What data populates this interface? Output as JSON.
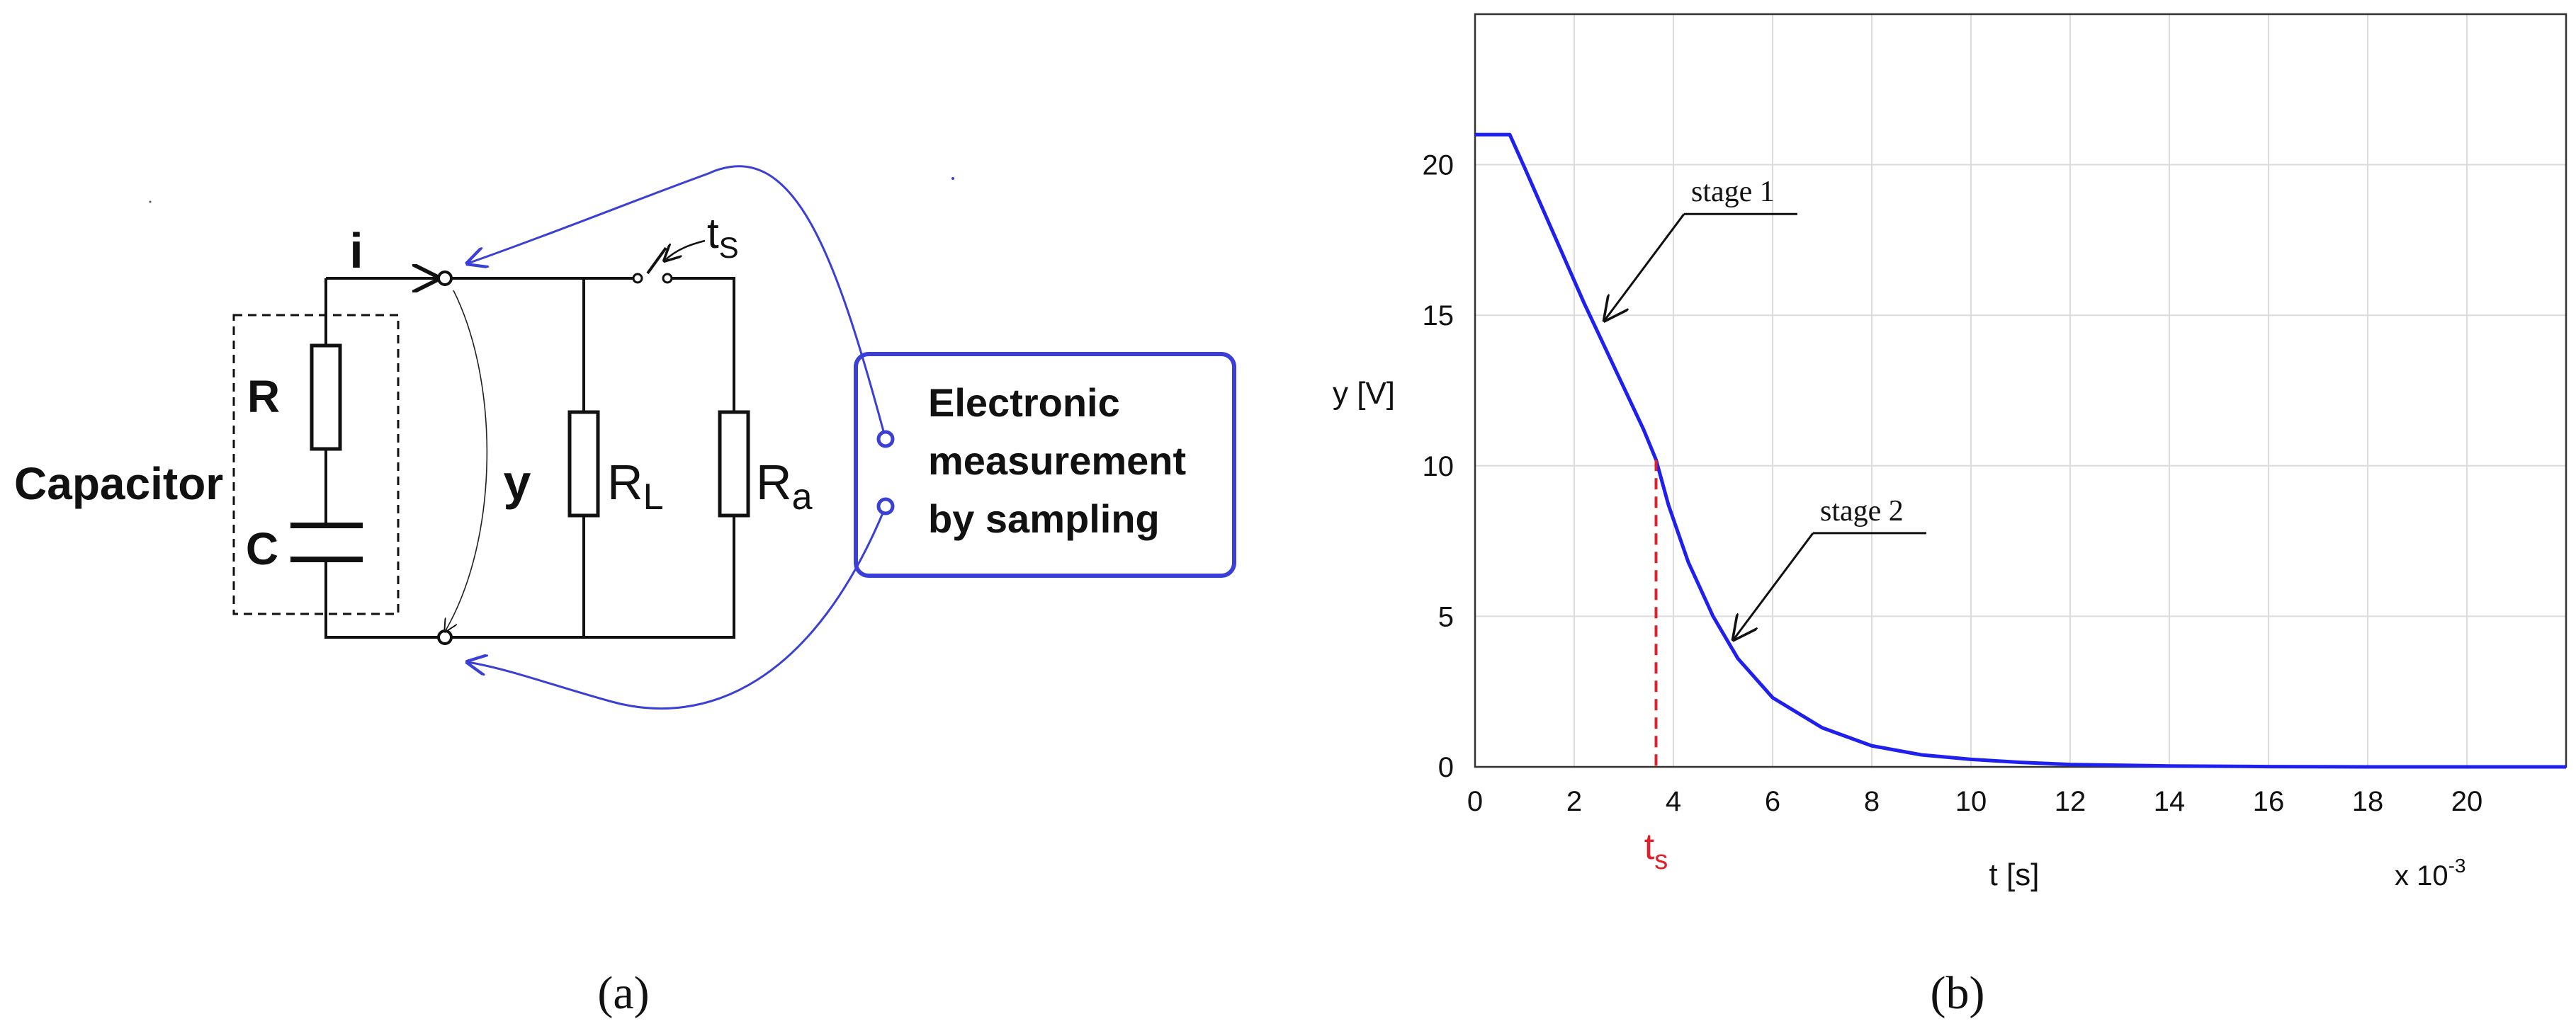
{
  "circuit": {
    "current_label": "i",
    "switch_label": "t",
    "switch_subscript": "S",
    "capacitor_label": "Capacitor",
    "r_label": "R",
    "c_label": "C",
    "y_label": "y",
    "rl_label": "R",
    "rl_subscript": "L",
    "ra_label": "R",
    "ra_subscript": "a",
    "measurement_box": [
      "Electronic",
      "measurement",
      "by sampling"
    ],
    "colors": {
      "wiring": "#111111",
      "measurement": "#3a3fd6"
    }
  },
  "panel_labels": {
    "a": "(a)",
    "b": "(b)"
  },
  "chart_data": {
    "type": "line",
    "xlabel": "t [s]",
    "ylabel": "y [V]",
    "x_multiplier": "x 10",
    "x_multiplier_exp": "-3",
    "xlim": [
      0,
      22
    ],
    "ylim": [
      0,
      25
    ],
    "x_ticks": [
      0,
      2,
      4,
      6,
      8,
      10,
      12,
      14,
      16,
      18,
      20
    ],
    "y_ticks": [
      0,
      5,
      10,
      15,
      20
    ],
    "grid": true,
    "line_color": "#2020ee",
    "series": [
      {
        "x": [
          0,
          0.7,
          1.0,
          1.4,
          1.8,
          2.2,
          2.6,
          3.0,
          3.4,
          3.65,
          3.9,
          4.3,
          4.8,
          5.3,
          6.0,
          7.0,
          8.0,
          9.0,
          10.0,
          11.0,
          12.0,
          14.0,
          16.0,
          18.0,
          20.0,
          22.0
        ],
        "y": [
          21.0,
          21.0,
          19.9,
          18.4,
          16.9,
          15.4,
          14.0,
          12.6,
          11.2,
          10.2,
          8.7,
          6.8,
          5.0,
          3.6,
          2.3,
          1.3,
          0.7,
          0.4,
          0.25,
          0.15,
          0.08,
          0.03,
          0.01,
          0.0,
          0.0,
          0.0
        ]
      }
    ],
    "marker_ts": {
      "x": 3.65,
      "y": 10.2,
      "label": "t",
      "subscript": "s",
      "color": "#e0202a"
    },
    "annotations": [
      {
        "text": "stage 1",
        "x": 2.5,
        "y": 14.6
      },
      {
        "text": "stage 2",
        "x": 5.1,
        "y": 4.0
      }
    ]
  }
}
